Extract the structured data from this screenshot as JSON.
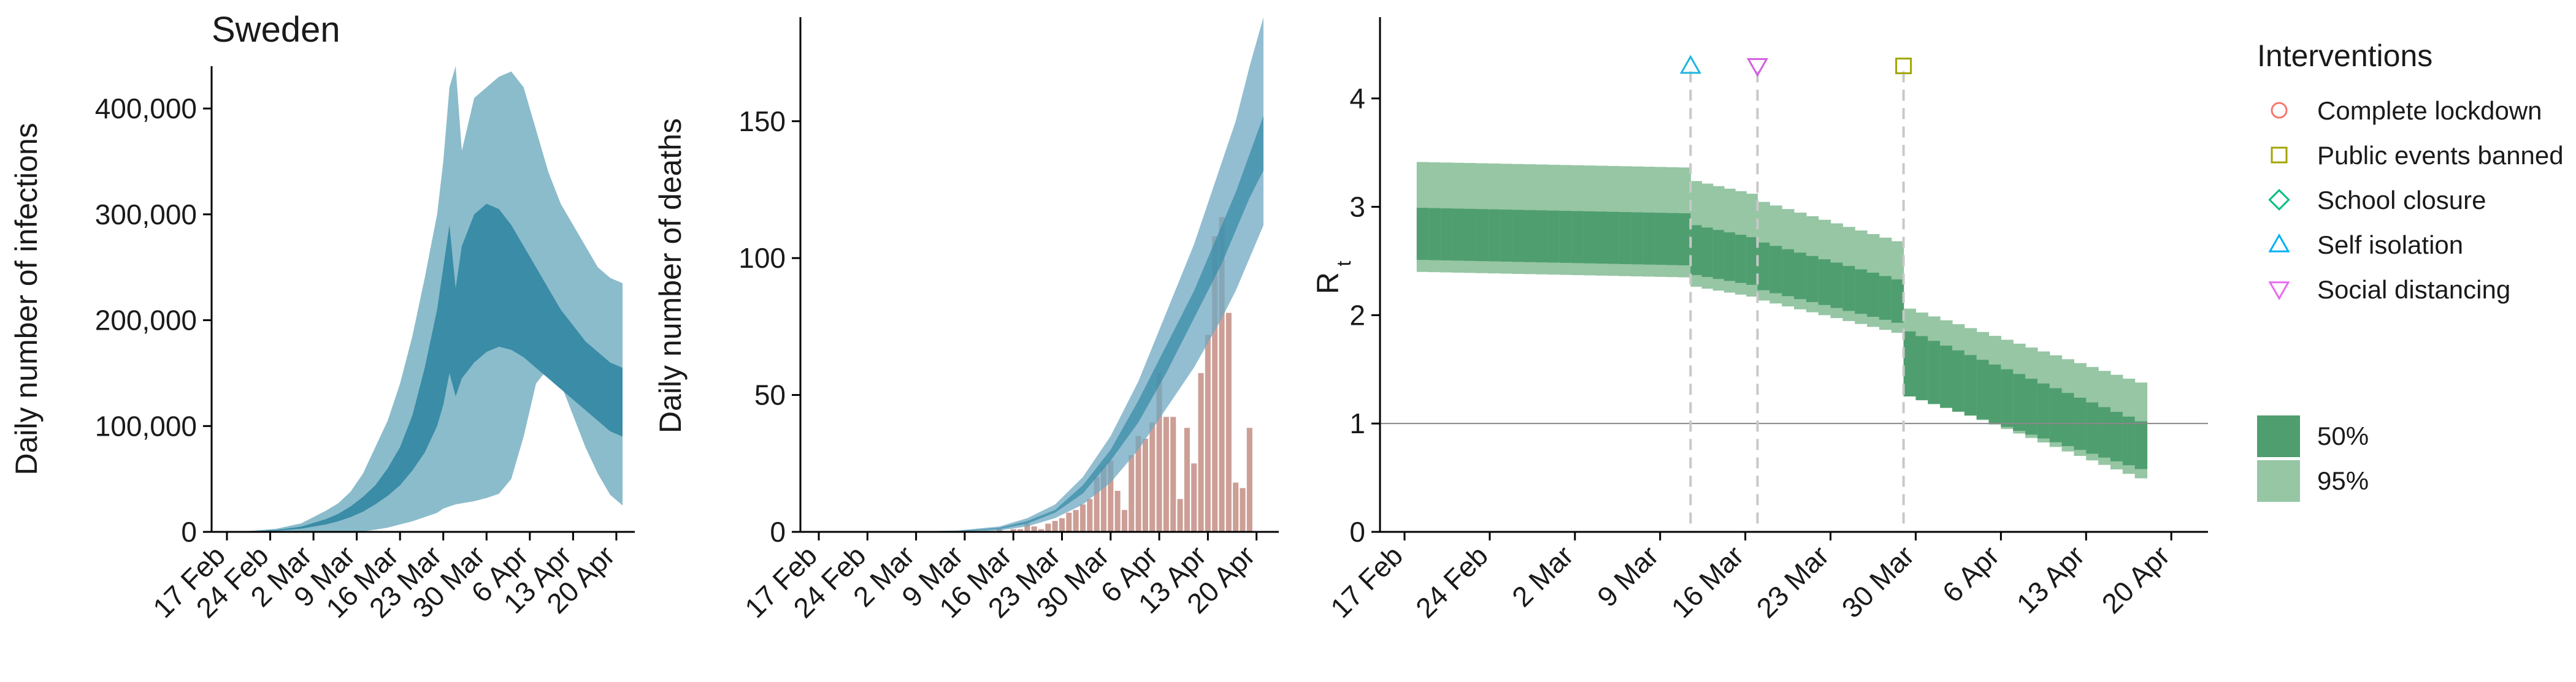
{
  "chart_data": [
    {
      "type": "area",
      "title": "Sweden",
      "xlabel": "",
      "ylabel": "Daily number of infections",
      "x_ticks": [
        "17 Feb",
        "24 Feb",
        "2 Mar",
        "9 Mar",
        "16 Mar",
        "23 Mar",
        "30 Mar",
        "6 Apr",
        "13 Apr",
        "20 Apr"
      ],
      "y_ticks": [
        "0",
        "100,000",
        "200,000",
        "300,000",
        "400,000"
      ],
      "ylim": [
        0,
        440000
      ],
      "xlim_days": [
        0,
        64
      ],
      "series": [
        {
          "band": "95%",
          "color": "#8bbccb",
          "x_days": [
            0,
            4,
            8,
            12,
            16,
            18,
            20,
            22,
            24,
            26,
            28,
            30,
            32,
            34,
            35,
            36,
            37,
            38,
            40,
            42,
            44,
            46,
            48,
            50,
            52,
            54,
            56,
            58,
            60,
            62,
            64
          ],
          "lower": [
            0,
            0,
            0,
            0,
            0,
            0,
            0,
            500,
            2000,
            4000,
            7000,
            10000,
            14000,
            18000,
            22000,
            24000,
            26000,
            27000,
            29000,
            32000,
            36000,
            50000,
            90000,
            140000,
            155000,
            140000,
            110000,
            80000,
            55000,
            35000,
            25000
          ],
          "upper": [
            500,
            1000,
            3000,
            8000,
            20000,
            27000,
            38000,
            55000,
            80000,
            105000,
            140000,
            185000,
            240000,
            300000,
            350000,
            420000,
            440000,
            360000,
            410000,
            420000,
            430000,
            435000,
            420000,
            380000,
            340000,
            310000,
            290000,
            270000,
            250000,
            240000,
            235000
          ]
        },
        {
          "band": "50%",
          "color": "#3a8ca7",
          "x_days": [
            0,
            4,
            8,
            12,
            16,
            18,
            20,
            22,
            24,
            26,
            28,
            30,
            32,
            34,
            35,
            36,
            37,
            38,
            40,
            42,
            44,
            46,
            48,
            50,
            52,
            54,
            56,
            58,
            60,
            62,
            64
          ],
          "lower": [
            100,
            300,
            1000,
            3000,
            7000,
            10000,
            14000,
            19000,
            26000,
            34000,
            44000,
            58000,
            75000,
            100000,
            120000,
            150000,
            128000,
            145000,
            160000,
            170000,
            175000,
            172000,
            165000,
            155000,
            145000,
            135000,
            125000,
            115000,
            105000,
            95000,
            90000
          ],
          "upper": [
            200,
            600,
            1800,
            5000,
            12000,
            17000,
            24000,
            33000,
            44000,
            60000,
            80000,
            110000,
            155000,
            210000,
            250000,
            290000,
            230000,
            270000,
            300000,
            310000,
            305000,
            290000,
            270000,
            250000,
            230000,
            210000,
            195000,
            180000,
            170000,
            160000,
            155000
          ]
        }
      ]
    },
    {
      "type": "bar",
      "xlabel": "",
      "ylabel": "Daily number of deaths",
      "x_ticks": [
        "17 Feb",
        "24 Feb",
        "2 Mar",
        "9 Mar",
        "16 Mar",
        "23 Mar",
        "30 Mar",
        "6 Apr",
        "13 Apr",
        "20 Apr"
      ],
      "y_ticks": [
        "0",
        "50",
        "100",
        "150"
      ],
      "ylim": [
        0,
        188
      ],
      "xlim_days": [
        0,
        64
      ],
      "bar_color": "#c9998f",
      "bar_days": [
        26,
        27,
        28,
        29,
        30,
        31,
        32,
        33,
        34,
        35,
        36,
        37,
        38,
        39,
        40,
        41,
        42,
        43,
        44,
        45,
        46,
        47,
        48,
        49,
        50,
        51,
        52,
        53,
        54,
        55,
        56,
        57,
        58,
        59,
        60,
        61,
        62
      ],
      "bar_values": [
        1,
        0,
        1,
        1,
        3,
        2,
        1,
        3,
        4,
        5,
        7,
        8,
        10,
        12,
        20,
        24,
        26,
        15,
        8,
        28,
        35,
        34,
        40,
        58,
        42,
        42,
        12,
        38,
        25,
        58,
        72,
        108,
        115,
        80,
        18,
        16,
        38
      ],
      "bands": [
        {
          "band": "95%",
          "color": "#6fa8c2",
          "x_days": [
            0,
            10,
            20,
            26,
            30,
            34,
            38,
            42,
            46,
            50,
            54,
            58,
            60,
            62,
            64
          ],
          "lower": [
            0,
            0,
            0,
            0.5,
            2,
            5,
            10,
            18,
            30,
            45,
            60,
            78,
            88,
            100,
            112
          ],
          "upper": [
            0,
            0,
            0.5,
            2,
            5,
            10,
            20,
            35,
            55,
            80,
            105,
            135,
            150,
            170,
            188
          ]
        },
        {
          "band": "50%",
          "color": "#3a8ca7",
          "x_days": [
            0,
            10,
            20,
            26,
            30,
            34,
            38,
            42,
            46,
            50,
            54,
            58,
            60,
            62,
            64
          ],
          "lower": [
            0,
            0,
            0.2,
            1,
            3,
            7,
            14,
            26,
            40,
            58,
            78,
            98,
            110,
            122,
            132
          ],
          "upper": [
            0,
            0,
            0.3,
            1.5,
            4,
            8,
            17,
            30,
            48,
            68,
            88,
            112,
            124,
            138,
            152
          ]
        }
      ]
    },
    {
      "type": "area",
      "xlabel": "",
      "ylabel_main": "R",
      "ylabel_sub": "t",
      "x_ticks": [
        "17 Feb",
        "24 Feb",
        "2 Mar",
        "9 Mar",
        "16 Mar",
        "23 Mar",
        "30 Mar",
        "6 Apr",
        "13 Apr",
        "20 Apr"
      ],
      "y_ticks": [
        "0",
        "1",
        "2",
        "3",
        "4"
      ],
      "ylim": [
        0,
        4.75
      ],
      "xlim_days": [
        -1.5,
        64
      ],
      "reference_line": 1,
      "intervention_days": [
        23.5,
        29,
        41
      ],
      "intervention_markers": [
        {
          "shape": "triangle-up",
          "color": "#1fb5e0",
          "day": 23.5
        },
        {
          "shape": "triangle-down",
          "color": "#d25fe0",
          "day": 29
        },
        {
          "shape": "square",
          "color": "#a3a500",
          "day": 41
        }
      ],
      "band_colors": {
        "50%": "#4f9e6f",
        "95%": "#96c6a4"
      },
      "segments": [
        {
          "start": 1,
          "end": 23.5,
          "mid_start": 2.75,
          "mid_end": 2.7,
          "in50_start": 0.24,
          "in50_end": 0.24,
          "in95_start": 0.78,
          "in95_end": 0.78
        },
        {
          "start": 23.5,
          "end": 29,
          "mid_start": 2.6,
          "mid_end": 2.5,
          "in50_start": 0.23,
          "in50_end": 0.22,
          "in95_start": 0.75,
          "in95_end": 0.73
        },
        {
          "start": 29,
          "end": 41,
          "mid_start": 2.45,
          "mid_end": 2.13,
          "in50_start": 0.22,
          "in50_end": 0.2,
          "in95_start": 0.7,
          "in95_end": 0.65
        },
        {
          "start": 41,
          "end": 61,
          "mid_start": 1.55,
          "mid_end": 0.8,
          "in50_start": 0.3,
          "in50_end": 0.22,
          "in95_start": 0.6,
          "in95_end": 0.68
        }
      ]
    }
  ],
  "legend": {
    "interventions_title": "Interventions",
    "items": [
      {
        "label": "Complete lockdown",
        "shape": "circle",
        "color": "#f8766d"
      },
      {
        "label": "Public events banned",
        "shape": "square",
        "color": "#a3a500"
      },
      {
        "label": "School closure",
        "shape": "diamond",
        "color": "#00bf7d"
      },
      {
        "label": "Self isolation",
        "shape": "triangle-up",
        "color": "#00b0f6"
      },
      {
        "label": "Social distancing",
        "shape": "triangle-down",
        "color": "#e76bf3"
      }
    ],
    "bands": [
      {
        "label": "50%",
        "color": "#4f9e6f"
      },
      {
        "label": "95%",
        "color": "#96c6a4"
      }
    ]
  }
}
